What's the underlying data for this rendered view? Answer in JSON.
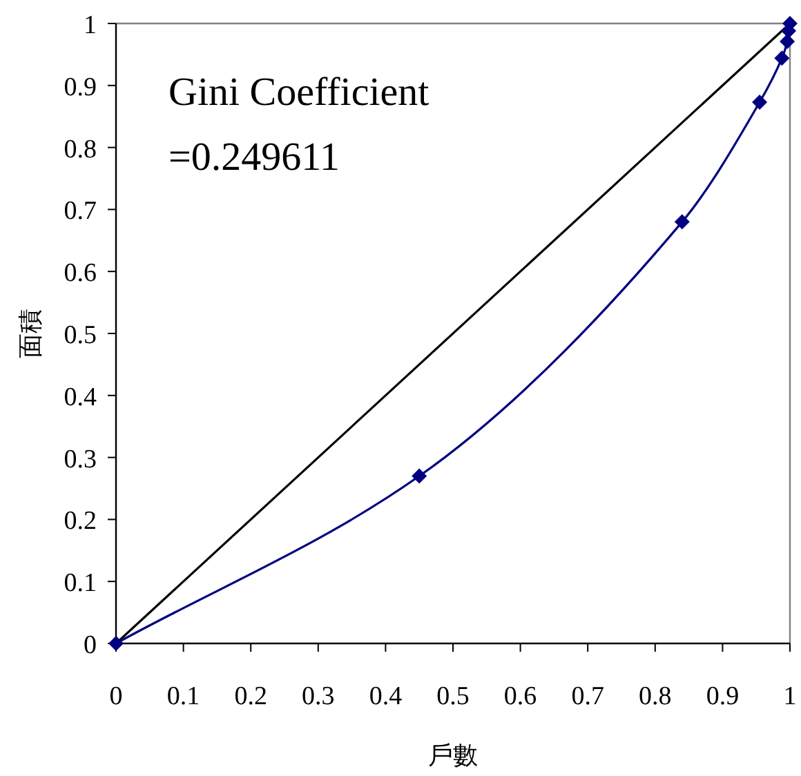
{
  "chart_data": {
    "type": "line",
    "xlabel": "戶數",
    "ylabel": "面積",
    "annotations": [
      "Gini Coefficient",
      "=0.249611"
    ],
    "series": [
      {
        "color": "#000000",
        "marker": "none",
        "x": [
          0,
          1
        ],
        "values": [
          0,
          1
        ]
      },
      {
        "color": "#000080",
        "marker": "diamond",
        "x": [
          0,
          0.45,
          0.84,
          0.955,
          0.988,
          0.996,
          0.998,
          1
        ],
        "values": [
          0,
          0.27,
          0.68,
          0.873,
          0.944,
          0.971,
          0.988,
          1
        ]
      }
    ],
    "xlim": [
      0,
      1
    ],
    "ylim": [
      0,
      1
    ],
    "xticks": [
      0,
      0.1,
      0.2,
      0.3,
      0.4,
      0.5,
      0.6,
      0.7,
      0.8,
      0.9,
      1
    ],
    "yticks": [
      0,
      0.1,
      0.2,
      0.3,
      0.4,
      0.5,
      0.6,
      0.7,
      0.8,
      0.9,
      1
    ],
    "grid": false,
    "line_style": "solid"
  }
}
